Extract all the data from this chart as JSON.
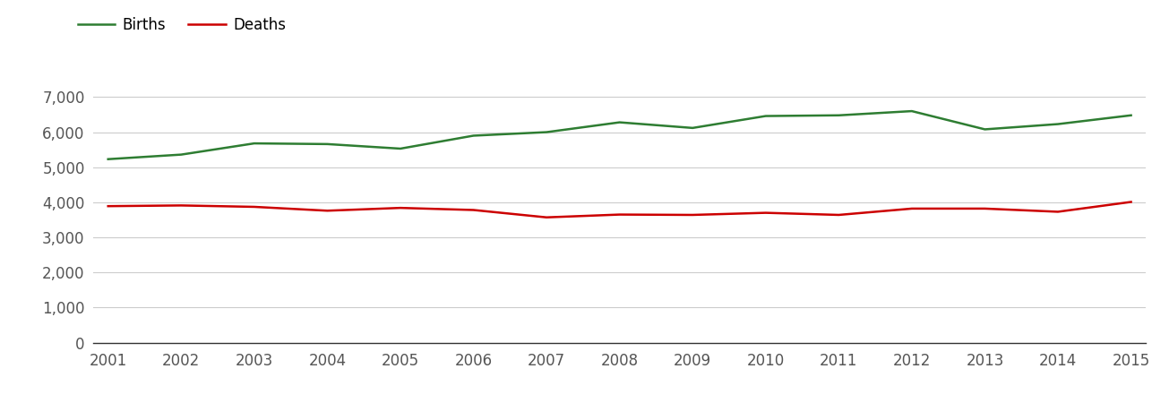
{
  "years": [
    2001,
    2002,
    2003,
    2004,
    2005,
    2006,
    2007,
    2008,
    2009,
    2010,
    2011,
    2012,
    2013,
    2014,
    2015
  ],
  "births": [
    5230,
    5360,
    5680,
    5660,
    5530,
    5900,
    6000,
    6280,
    6120,
    6460,
    6480,
    6600,
    6080,
    6230,
    6480
  ],
  "deaths": [
    3890,
    3910,
    3870,
    3760,
    3840,
    3780,
    3570,
    3650,
    3640,
    3700,
    3640,
    3820,
    3820,
    3730,
    4010
  ],
  "births_color": "#2e7d32",
  "deaths_color": "#cc0000",
  "background_color": "#ffffff",
  "grid_color": "#cccccc",
  "ylim": [
    0,
    7700
  ],
  "yticks": [
    0,
    1000,
    2000,
    3000,
    4000,
    5000,
    6000,
    7000
  ],
  "legend_labels": [
    "Births",
    "Deaths"
  ],
  "line_width": 1.8,
  "tick_fontsize": 12,
  "tick_color": "#555555"
}
